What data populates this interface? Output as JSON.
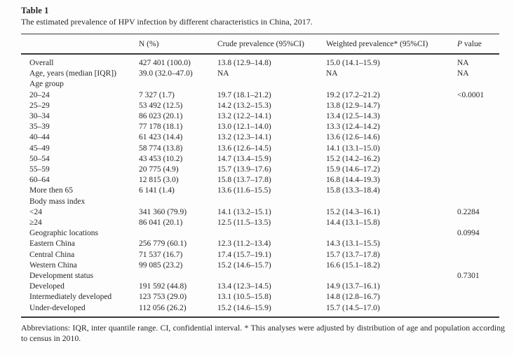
{
  "page": {
    "title": "Table 1",
    "caption": "The estimated prevalence of HPV infection by different characteristics in China, 2017."
  },
  "colors": {
    "background": "#fdfdfd",
    "text": "#262626",
    "rule": "#3a3a3a"
  },
  "table": {
    "columns": [
      "",
      "N (%)",
      "Crude prevalence (95%CI)",
      "Weighted prevalence* (95%CI)",
      "P value"
    ],
    "rows": [
      [
        "Overall",
        "427 401 (100.0)",
        "13.8 (12.9–14.8)",
        "15.0 (14.1–15.9)",
        "NA"
      ],
      [
        "Age, years (median [IQR])",
        "39.0 (32.0–47.0)",
        "NA",
        "NA",
        "NA"
      ],
      [
        "Age group",
        "",
        "",
        "",
        ""
      ],
      [
        "20–24",
        "7 327 (1.7)",
        "19.7 (18.1–21.2)",
        "19.2 (17.2–21.2)",
        "<0.0001"
      ],
      [
        "25–29",
        "53 492 (12.5)",
        "14.2 (13.2–15.3)",
        "13.8 (12.9–14.7)",
        ""
      ],
      [
        "30–34",
        "86 023 (20.1)",
        "13.2 (12.2–14.1)",
        "13.4 (12.5–14.3)",
        ""
      ],
      [
        "35–39",
        "77 178 (18.1)",
        "13.0 (12.1–14.0)",
        "13.3 (12.4–14.2)",
        ""
      ],
      [
        "40–44",
        "61 423 (14.4)",
        "13.2 (12.3–14.1)",
        "13.6 (12.6–14.6)",
        ""
      ],
      [
        "45–49",
        "58 774 (13.8)",
        "13.6 (12.6–14.5)",
        "14.1 (13.1–15.0)",
        ""
      ],
      [
        "50–54",
        "43 453 (10.2)",
        "14.7 (13.4–15.9)",
        "15.2 (14.2–16.2)",
        ""
      ],
      [
        "55–59",
        "20 775 (4.9)",
        "15.7 (13.9–17.6)",
        "15.9 (14.6–17.2)",
        ""
      ],
      [
        "60–64",
        "12 815 (3.0)",
        "15.8 (13.7–17.8)",
        "16.8 (14.4–19.3)",
        ""
      ],
      [
        "More then 65",
        "6 141 (1.4)",
        "13.6 (11.6–15.5)",
        "15.8 (13.3–18.4)",
        ""
      ],
      [
        "Body mass index",
        "",
        "",
        "",
        ""
      ],
      [
        "<24",
        "341 360 (79.9)",
        "14.1 (13.2–15.1)",
        "15.2 (14.3–16.1)",
        "0.2284"
      ],
      [
        "≥24",
        "86 041 (20.1)",
        "12.5 (11.5–13.5)",
        "14.4 (13.1–15.8)",
        ""
      ],
      [
        "Geographic locations",
        "",
        "",
        "",
        "0.0994"
      ],
      [
        "Eastern China",
        "256 779 (60.1)",
        "12.3 (11.2–13.4)",
        "14.3 (13.1–15.5)",
        ""
      ],
      [
        "Central China",
        "71 537 (16.7)",
        "17.4 (15.7–19.1)",
        "15.7 (13.7–17.8)",
        ""
      ],
      [
        "Western China",
        "99 085 (23.2)",
        "15.2 (14.6–15.7)",
        "16.6 (15.1–18.2)",
        ""
      ],
      [
        "Development status",
        "",
        "",
        "",
        "0.7301"
      ],
      [
        "Developed",
        "191 592 (44.8)",
        "13.4 (12.3–14.5)",
        "14.9 (13.7–16.1)",
        ""
      ],
      [
        "Intermediately developed",
        "123 753 (29.0)",
        "13.1 (10.5–15.8)",
        "14.8 (12.8–16.7)",
        ""
      ],
      [
        "Under-developed",
        "112 056 (26.2)",
        "15.2 (14.6–15.9)",
        "15.7 (14.5–17.0)",
        ""
      ]
    ]
  },
  "footnote": "Abbreviations: IQR, inter quantile range. CI, confidential interval. * This analyses were adjusted by distribution of age and population according to census in 2010."
}
